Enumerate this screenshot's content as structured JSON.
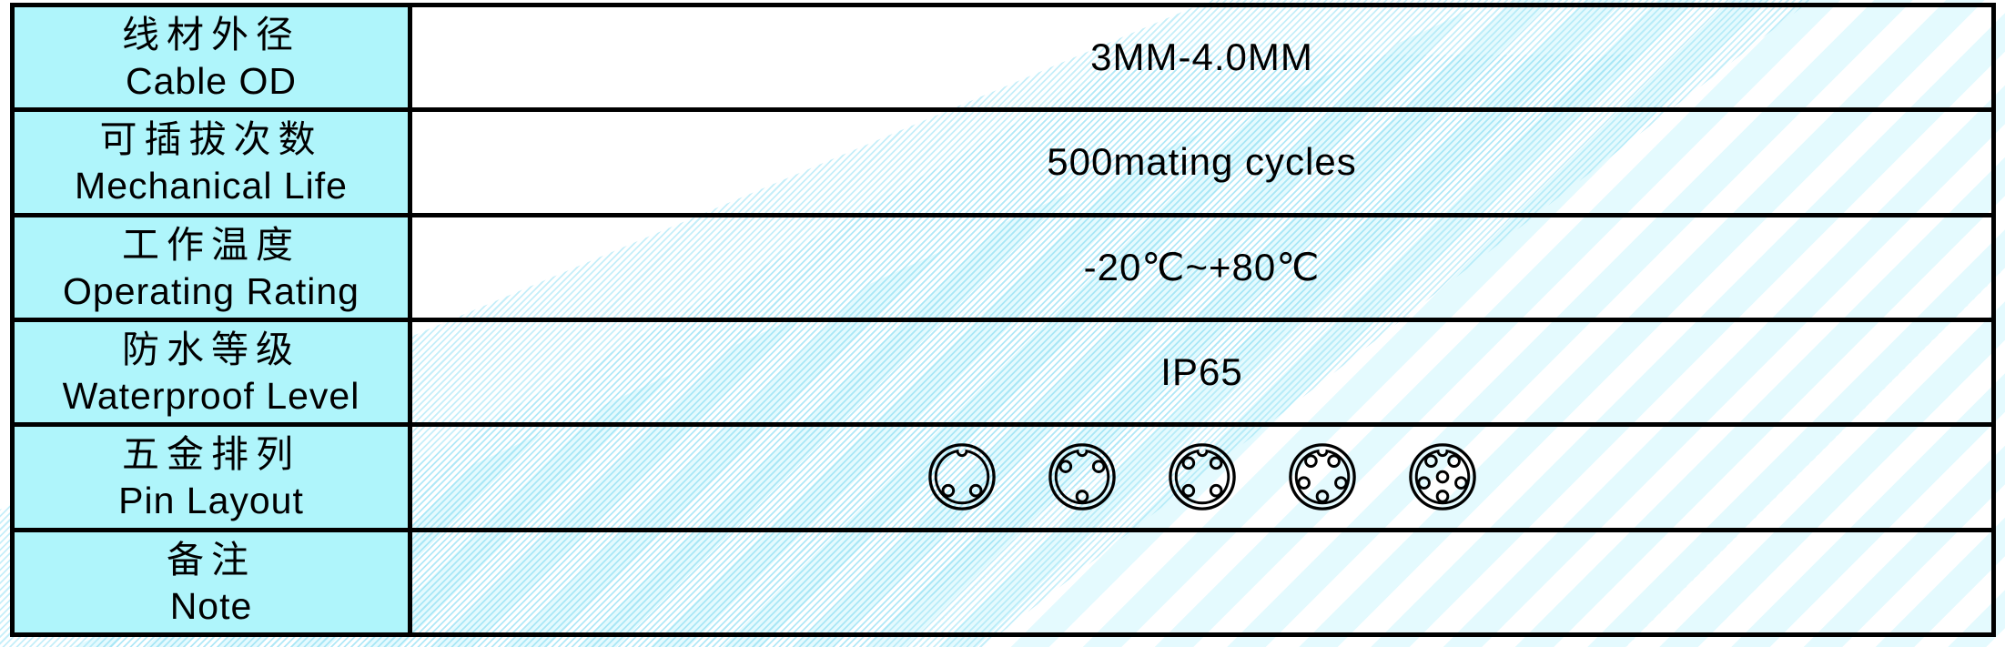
{
  "table": {
    "rows": [
      {
        "type": "text",
        "label_zh": "线材外径",
        "label_en": "Cable OD",
        "value": "3MM-4.0MM"
      },
      {
        "type": "text",
        "label_zh": "可插拔次数",
        "label_en": "Mechanical Life",
        "value": "500mating cycles"
      },
      {
        "type": "text",
        "label_zh": "工作温度",
        "label_en": "Operating Rating",
        "value": "-20℃~+80℃"
      },
      {
        "type": "text",
        "label_zh": "防水等级",
        "label_en": "Waterproof Level",
        "value": "IP65"
      },
      {
        "type": "pin-layout",
        "label_zh": "五金排列",
        "label_en": "Pin Layout",
        "connectors": [
          {
            "name": "2-pin-connector",
            "pins": 2
          },
          {
            "name": "3-pin-connector",
            "pins": 3
          },
          {
            "name": "4-pin-connector",
            "pins": 4
          },
          {
            "name": "5-pin-connector",
            "pins": 5
          },
          {
            "name": "6-pin-connector",
            "pins": 6,
            "center_pin": true
          }
        ]
      },
      {
        "type": "text",
        "label_zh": "备注",
        "label_en": "Note",
        "value": ""
      }
    ]
  },
  "colors": {
    "label_bg": "#aff5fb",
    "border": "#000000",
    "stripe": "#e4fafe",
    "hatch_line": "#8cdef3",
    "text": "#000000"
  }
}
